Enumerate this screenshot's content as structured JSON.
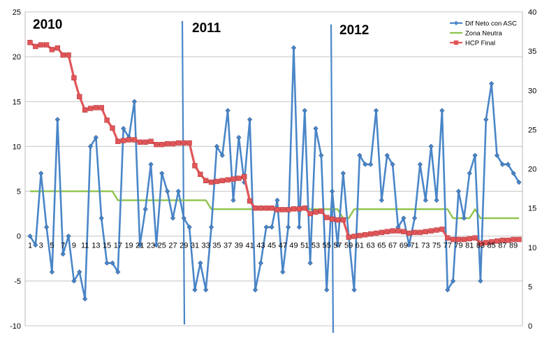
{
  "chart_data": {
    "type": "line",
    "title": "",
    "xlabel": "",
    "ylabel": "",
    "x": [
      1,
      2,
      3,
      4,
      5,
      6,
      7,
      8,
      9,
      10,
      11,
      12,
      13,
      14,
      15,
      16,
      17,
      18,
      19,
      20,
      21,
      22,
      23,
      24,
      25,
      26,
      27,
      28,
      29,
      30,
      31,
      32,
      33,
      34,
      35,
      36,
      37,
      38,
      39,
      40,
      41,
      42,
      43,
      44,
      45,
      46,
      47,
      48,
      49,
      50,
      51,
      52,
      53,
      54,
      55,
      56,
      57,
      58,
      59,
      60,
      61,
      62,
      63,
      64,
      65,
      66,
      67,
      68,
      69,
      70,
      71,
      72,
      73,
      74,
      75,
      76,
      77,
      78,
      79,
      80,
      81,
      82,
      83,
      84,
      85,
      86,
      87,
      88,
      89,
      90
    ],
    "x_tick_labels": [
      "1",
      "3",
      "5",
      "7",
      "9",
      "11",
      "13",
      "15",
      "17",
      "19",
      "21",
      "23",
      "25",
      "27",
      "29",
      "31",
      "33",
      "35",
      "37",
      "39",
      "41",
      "43",
      "45",
      "47",
      "49",
      "51",
      "53",
      "55",
      "57",
      "59",
      "61",
      "63",
      "65",
      "67",
      "69",
      "71",
      "73",
      "75",
      "77",
      "79",
      "81",
      "83",
      "85",
      "87",
      "89"
    ],
    "y_left": {
      "min": -10,
      "max": 25,
      "step": 5,
      "ticks": [
        "-10",
        "-5",
        "0",
        "5",
        "10",
        "15",
        "20",
        "25"
      ]
    },
    "y_right": {
      "min": 0,
      "max": 40,
      "step": 5,
      "ticks": [
        "0",
        "5",
        "10",
        "15",
        "20",
        "25",
        "30",
        "35",
        "40"
      ]
    },
    "grid": "horizontal",
    "legend_position": "top-right",
    "series": [
      {
        "name": "Dif Neto con ASC",
        "axis": "left",
        "color": "#4a86c8",
        "marker": "diamond",
        "values": [
          0,
          -1,
          7,
          1,
          -4,
          13,
          -2,
          0,
          -5,
          -4,
          -7,
          10,
          11,
          2,
          -3,
          -3,
          -4,
          12,
          11,
          15,
          -1,
          3,
          8,
          -1,
          7,
          5,
          2,
          5,
          2,
          1,
          -6,
          -3,
          -6,
          1,
          10,
          9,
          14,
          4,
          11,
          6,
          13,
          -6,
          -3,
          1,
          1,
          4,
          -4,
          1,
          21,
          1,
          14,
          -3,
          12,
          9,
          -6,
          5,
          -1,
          7,
          0,
          -6,
          9,
          8,
          8,
          14,
          4,
          9,
          8,
          1,
          2,
          -1,
          2,
          8,
          4,
          10,
          4,
          14,
          -6,
          -5,
          5,
          2,
          7,
          9,
          -5,
          13,
          17,
          9,
          8,
          8,
          7,
          6
        ]
      },
      {
        "name": "Zona Neutra",
        "axis": "left",
        "color": "#8ec44a",
        "marker": "none",
        "values": [
          5,
          5,
          5,
          5,
          5,
          5,
          5,
          5,
          5,
          5,
          5,
          5,
          5,
          5,
          5,
          5,
          4,
          4,
          4,
          4,
          4,
          4,
          4,
          4,
          4,
          4,
          4,
          4,
          4,
          4,
          4,
          4,
          4,
          3,
          3,
          3,
          3,
          3,
          3,
          3,
          3,
          3,
          3,
          3,
          3,
          3,
          3,
          3,
          3,
          3,
          3,
          3,
          3,
          3,
          3,
          3,
          3,
          2,
          2,
          3,
          3,
          3,
          3,
          3,
          3,
          3,
          3,
          3,
          3,
          3,
          3,
          3,
          3,
          3,
          3,
          3,
          3,
          2,
          2,
          2,
          2,
          3,
          2,
          2,
          2,
          2,
          2,
          2,
          2,
          2
        ]
      },
      {
        "name": "HCP Final",
        "axis": "right",
        "color": "#e15659",
        "marker": "square",
        "values": [
          36.1,
          35.6,
          35.8,
          35.8,
          35.2,
          35.4,
          34.5,
          34.5,
          31.6,
          29.2,
          27.5,
          27.7,
          27.8,
          27.8,
          26.2,
          25.2,
          23.5,
          23.6,
          23.7,
          23.7,
          23.4,
          23.4,
          23.5,
          23.1,
          23.1,
          23.2,
          23.2,
          23.3,
          23.3,
          23.3,
          20.4,
          19.3,
          18.5,
          18.3,
          18.4,
          18.5,
          18.6,
          18.7,
          18.8,
          19.0,
          15.9,
          15.0,
          15.0,
          15.0,
          15.0,
          14.8,
          14.8,
          14.8,
          14.9,
          14.9,
          15.0,
          14.3,
          14.5,
          14.6,
          13.8,
          13.6,
          13.5,
          13.5,
          11.3,
          11.4,
          11.5,
          11.6,
          11.7,
          11.8,
          11.9,
          12.0,
          12.1,
          12.1,
          12.0,
          11.8,
          11.9,
          11.9,
          12.0,
          12.1,
          12.2,
          12.3,
          11.2,
          11.0,
          11.0,
          11.0,
          11.1,
          11.2,
          10.5,
          10.6,
          10.7,
          10.8,
          10.9,
          10.9,
          11.0,
          11.0
        ]
      }
    ],
    "annotations": [
      {
        "text": "2010",
        "at_x": null
      },
      {
        "text": "2011",
        "at_x": 29.5
      },
      {
        "text": "2012",
        "at_x": 56.5
      }
    ]
  }
}
